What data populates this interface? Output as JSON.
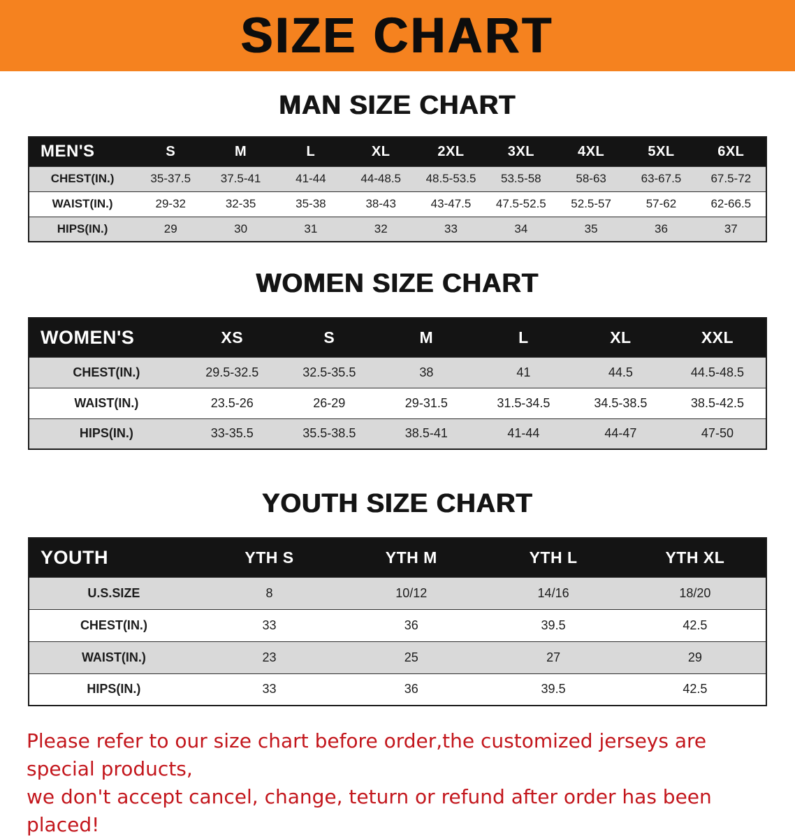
{
  "banner": {
    "title": "SIZE CHART"
  },
  "sections": [
    {
      "id": "men",
      "heading": "MAN SIZE CHART",
      "table": {
        "header": [
          "MEN'S",
          "S",
          "M",
          "L",
          "XL",
          "2XL",
          "3XL",
          "4XL",
          "5XL",
          "6XL"
        ],
        "rows": [
          [
            "CHEST(IN.)",
            "35-37.5",
            "37.5-41",
            "41-44",
            "44-48.5",
            "48.5-53.5",
            "53.5-58",
            "58-63",
            "63-67.5",
            "67.5-72"
          ],
          [
            "WAIST(IN.)",
            "29-32",
            "32-35",
            "35-38",
            "38-43",
            "43-47.5",
            "47.5-52.5",
            "52.5-57",
            "57-62",
            "62-66.5"
          ],
          [
            "HIPS(IN.)",
            "29",
            "30",
            "31",
            "32",
            "33",
            "34",
            "35",
            "36",
            "37"
          ]
        ]
      }
    },
    {
      "id": "women",
      "heading": "WOMEN SIZE CHART",
      "table": {
        "header": [
          "WOMEN'S",
          "XS",
          "S",
          "M",
          "L",
          "XL",
          "XXL"
        ],
        "rows": [
          [
            "CHEST(IN.)",
            "29.5-32.5",
            "32.5-35.5",
            "38",
            "41",
            "44.5",
            "44.5-48.5"
          ],
          [
            "WAIST(IN.)",
            "23.5-26",
            "26-29",
            "29-31.5",
            "31.5-34.5",
            "34.5-38.5",
            "38.5-42.5"
          ],
          [
            "HIPS(IN.)",
            "33-35.5",
            "35.5-38.5",
            "38.5-41",
            "41-44",
            "44-47",
            "47-50"
          ]
        ]
      }
    },
    {
      "id": "youth",
      "heading": "YOUTH SIZE CHART",
      "table": {
        "header": [
          "YOUTH",
          "YTH S",
          "YTH M",
          "YTH L",
          "YTH XL"
        ],
        "rows": [
          [
            "U.S.SIZE",
            "8",
            "10/12",
            "14/16",
            "18/20"
          ],
          [
            "CHEST(IN.)",
            "33",
            "36",
            "39.5",
            "42.5"
          ],
          [
            "WAIST(IN.)",
            "23",
            "25",
            "27",
            "29"
          ],
          [
            "HIPS(IN.)",
            "33",
            "36",
            "39.5",
            "42.5"
          ]
        ]
      }
    }
  ],
  "disclaimer": {
    "line1": "Please refer to our size chart before order,the customized jerseys are special products,",
    "line2": "we don't accept cancel, change, teturn or refund after order has been placed!"
  },
  "colors": {
    "banner_background": "#f5821f",
    "banner_text": "#0d0d0d",
    "table_header_background": "#141414",
    "table_header_text": "#ffffff",
    "table_row_shaded": "#d9d9d9",
    "table_row_plain": "#ffffff",
    "disclaimer_text": "#c3161c"
  }
}
